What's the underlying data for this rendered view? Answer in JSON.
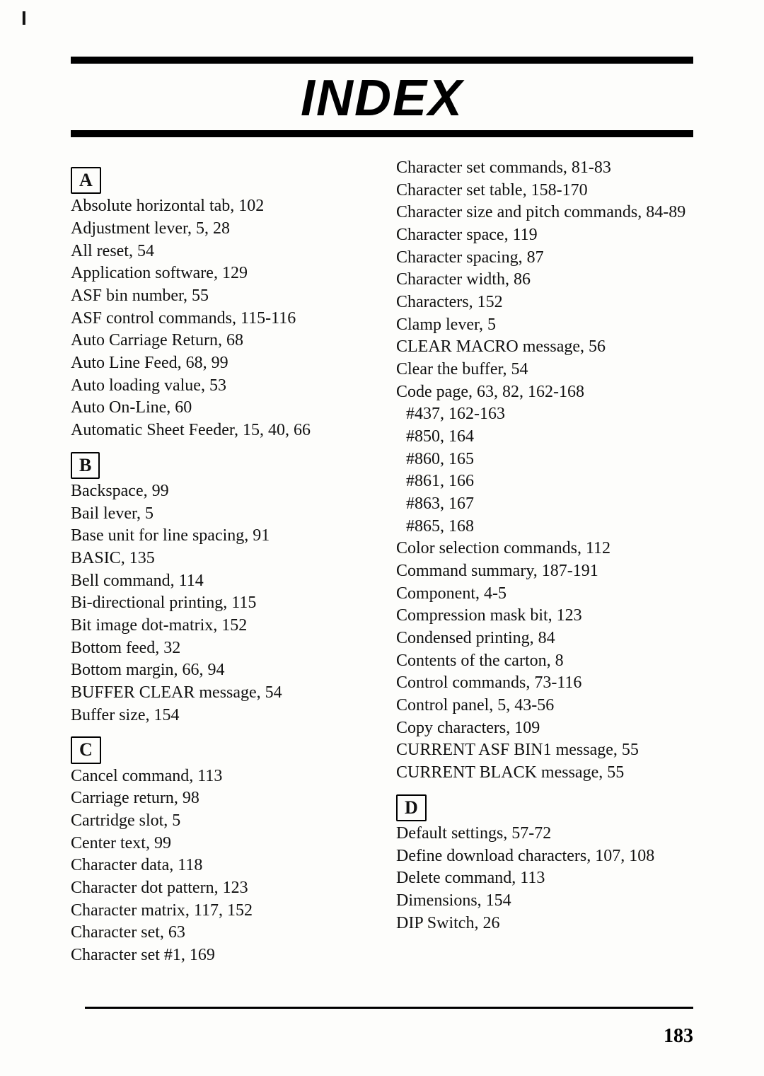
{
  "title": "INDEX",
  "page_number": "183",
  "left": {
    "A": {
      "letter": "A",
      "entries": [
        "Absolute horizontal tab, 102",
        "Adjustment lever, 5, 28",
        "All reset, 54",
        "Application software, 129",
        "ASF bin number, 55",
        "ASF control commands, 115-116",
        "Auto Carriage Return, 68",
        "Auto Line Feed, 68, 99",
        "Auto loading value, 53",
        "Auto On-Line, 60",
        "Automatic Sheet Feeder, 15, 40, 66"
      ]
    },
    "B": {
      "letter": "B",
      "entries": [
        "Backspace, 99",
        "Bail lever, 5",
        "Base unit for line spacing, 91",
        "BASIC, 135",
        "Bell command, 114",
        "Bi-directional printing, 115",
        "Bit image dot-matrix, 152",
        "Bottom feed, 32",
        "Bottom margin, 66, 94",
        "BUFFER CLEAR message, 54",
        "Buffer size, 154"
      ]
    },
    "C": {
      "letter": "C",
      "entries": [
        "Cancel command, 113",
        "Carriage return, 98",
        "Cartridge slot, 5",
        "Center text, 99",
        "Character data, 118",
        "Character dot pattern, 123",
        "Character matrix, 117, 152",
        "Character set, 63",
        "Character set #1, 169"
      ]
    }
  },
  "right": {
    "C_cont": {
      "entries": [
        "Character set commands, 81-83",
        "Character set table, 158-170",
        "Character size and pitch commands, 84-89",
        "Character space, 119",
        "Character spacing, 87",
        "Character width, 86",
        "Characters, 152",
        "Clamp lever, 5",
        "CLEAR MACRO message, 56",
        "Clear the buffer, 54",
        "Code page, 63, 82, 162-168"
      ],
      "subs": [
        "#437, 162-163",
        "#850, 164",
        "#860, 165",
        "#861, 166",
        "#863, 167",
        "#865, 168"
      ],
      "entries2": [
        "Color selection commands, 112",
        "Command summary, 187-191",
        "Component, 4-5",
        "Compression mask bit, 123",
        "Condensed printing, 84",
        "Contents of the carton, 8",
        "Control commands, 73-116",
        "Control panel, 5, 43-56",
        "Copy characters, 109",
        "CURRENT ASF BIN1 message, 55",
        "CURRENT BLACK message, 55"
      ]
    },
    "D": {
      "letter": "D",
      "entries": [
        "Default settings, 57-72",
        "Define download characters, 107, 108",
        "Delete command, 113",
        "Dimensions, 154",
        "DIP Switch, 26"
      ]
    }
  }
}
